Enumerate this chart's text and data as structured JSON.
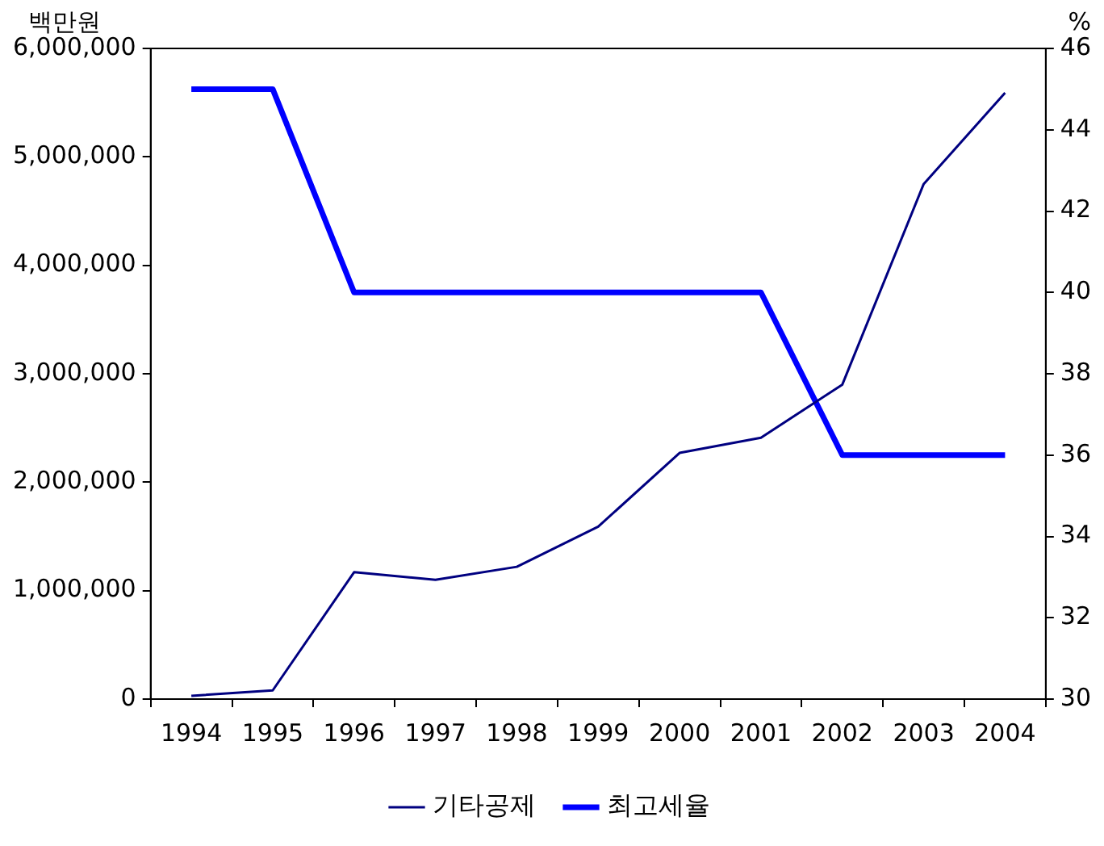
{
  "chart_data": {
    "type": "line",
    "ylabel": "백만원",
    "y2label": "%",
    "categories": [
      "1994",
      "1995",
      "1996",
      "1997",
      "1998",
      "1999",
      "2000",
      "2001",
      "2002",
      "2003",
      "2004"
    ],
    "series": [
      {
        "name": "기타공제",
        "color": "#000080",
        "values": [
          30000,
          80000,
          1170000,
          1100000,
          1220000,
          1590000,
          2270000,
          2410000,
          2900000,
          4750000,
          5590000
        ]
      },
      {
        "name": "최고세율",
        "color": "#0000ff",
        "axis": "y2",
        "values": [
          45,
          45,
          40,
          40,
          40,
          40,
          40,
          40,
          36,
          36,
          36
        ]
      }
    ],
    "ylim": [
      0,
      6000000
    ],
    "yticks": [
      0,
      {
        "value": 1000000,
        "label": "1,000,000"
      },
      {
        "value": 2000000,
        "label": "2,000,000"
      },
      {
        "value": 3000000,
        "label": "3,000,000"
      },
      {
        "value": 4000000,
        "label": "4,000,000"
      },
      {
        "value": 5000000,
        "label": "5,000,000"
      },
      {
        "value": 6000000,
        "label": "6,000,000"
      }
    ],
    "y2lim": [
      30,
      46
    ],
    "y2ticks": [
      30,
      32,
      34,
      36,
      38,
      40,
      42,
      44,
      46
    ],
    "grid": false,
    "legend": "bottom",
    "marker": "none",
    "line_style": "solid"
  }
}
